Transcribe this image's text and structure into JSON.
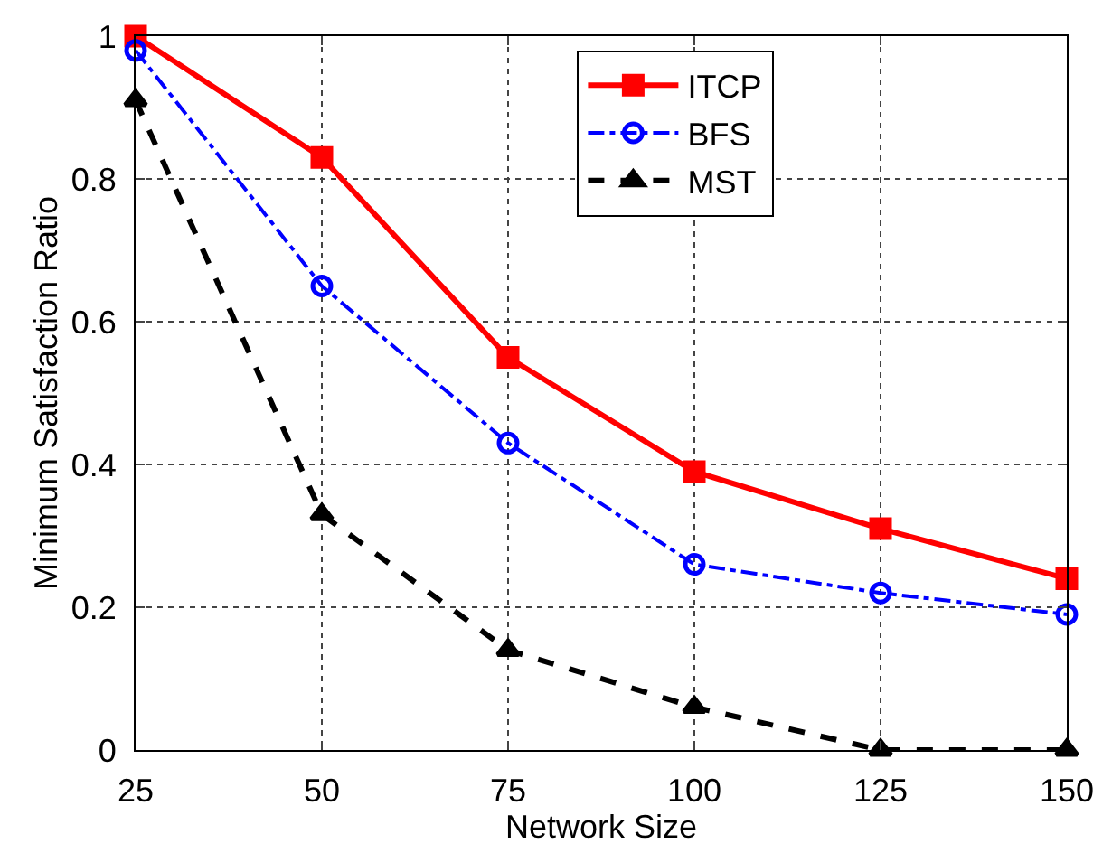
{
  "chart_data": {
    "type": "line",
    "xlabel": "Network Size",
    "ylabel": "Minimum Satisfaction Ratio",
    "x": [
      25,
      50,
      75,
      100,
      125,
      150
    ],
    "series": [
      {
        "name": "ITCP",
        "color": "#ff0000",
        "values": [
          1.0,
          0.83,
          0.55,
          0.39,
          0.31,
          0.24
        ],
        "marker": "square",
        "line_style": "solid"
      },
      {
        "name": "BFS",
        "color": "#0000ff",
        "values": [
          0.98,
          0.65,
          0.43,
          0.26,
          0.22,
          0.19
        ],
        "marker": "circle",
        "line_style": "dashdot"
      },
      {
        "name": "MST",
        "color": "#000000",
        "values": [
          0.91,
          0.33,
          0.14,
          0.06,
          0.0,
          0.0
        ],
        "marker": "triangle",
        "line_style": "dashed"
      }
    ],
    "xlim": [
      25,
      150
    ],
    "xticks": [
      25,
      50,
      75,
      100,
      125,
      150
    ],
    "ylim": [
      0,
      1
    ],
    "yticks": [
      0,
      0.2,
      0.4,
      0.6,
      0.8,
      1
    ],
    "grid": true,
    "legend": "top"
  }
}
